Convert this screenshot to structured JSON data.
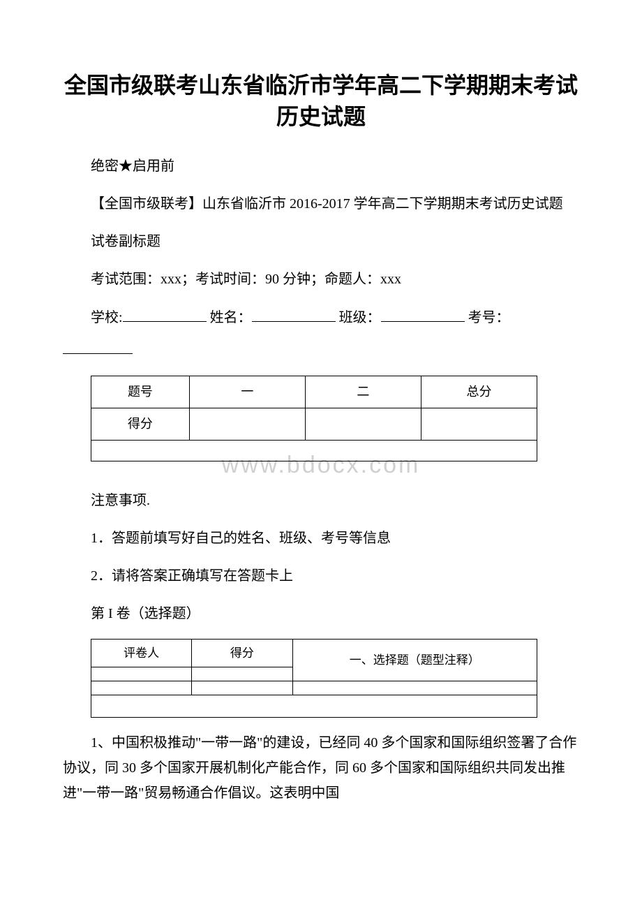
{
  "title": "全国市级联考山东省临沂市学年高二下学期期末考试历史试题",
  "confidential": "绝密★启用前",
  "fullTitle": "【全国市级联考】山东省临沂市 2016-2017 学年高二下学期期末考试历史试题",
  "subtitle": "试卷副标题",
  "examInfo": "考试范围：xxx；考试时间：90 分钟；命题人：xxx",
  "infoLabels": {
    "school": "学校:",
    "name": "姓名：",
    "class": "班级：",
    "id": "考号："
  },
  "scoreTable": {
    "row1": [
      "题号",
      "一",
      "二",
      "总分"
    ],
    "row2": [
      "得分",
      "",
      "",
      ""
    ]
  },
  "watermark": "www.bdocx.com",
  "noticeTitle": "注意事项.",
  "notice1": "1．答题前填写好自己的姓名、班级、考号等信息",
  "notice2": "2．请将答案正确填写在答题卡上",
  "volume": "第 I 卷（选择题）",
  "sectionTable": {
    "headerLeft1": "评卷人",
    "headerLeft2": "得分",
    "headerRight": "一、选择题（题型注释）"
  },
  "question1": "1、中国积极推动\"一带一路\"的建设，已经同 40 多个国家和国际组织签署了合作协议，同 30 多个国家开展机制化产能合作，同 60 多个国家和国际组织共同发出推进\"一带一路\"贸易畅通合作倡议。这表明中国",
  "colors": {
    "text": "#000000",
    "background": "#ffffff",
    "watermark": "#d0d0d0",
    "border": "#000000"
  }
}
